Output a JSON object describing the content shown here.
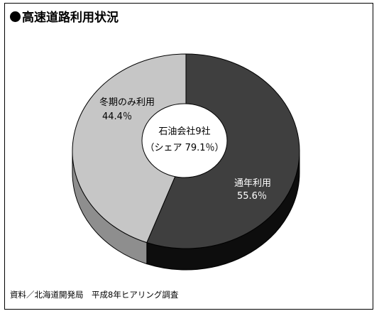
{
  "title": "高速道路利用状況",
  "source": "資料／北海道開発局　平成8年ヒアリング調査",
  "center_label": {
    "line1": "石油会社9社",
    "line2": "（シェア 79.1％）"
  },
  "chart_data": {
    "type": "pie",
    "title": "高速道路利用状況",
    "slices": [
      {
        "label": "通年利用",
        "value": 55.6,
        "value_text": "55.6％",
        "color": "#3f3f3f",
        "side_color": "#0d0d0d",
        "text_color": "#ffffff"
      },
      {
        "label": "冬期のみ利用",
        "value": 44.4,
        "value_text": "44.4％",
        "color": "#c6c6c6",
        "side_color": "#8e8e8e",
        "text_color": "#000000"
      }
    ],
    "center_text": [
      "石油会社9社",
      "（シェア 79.1％）"
    ]
  }
}
